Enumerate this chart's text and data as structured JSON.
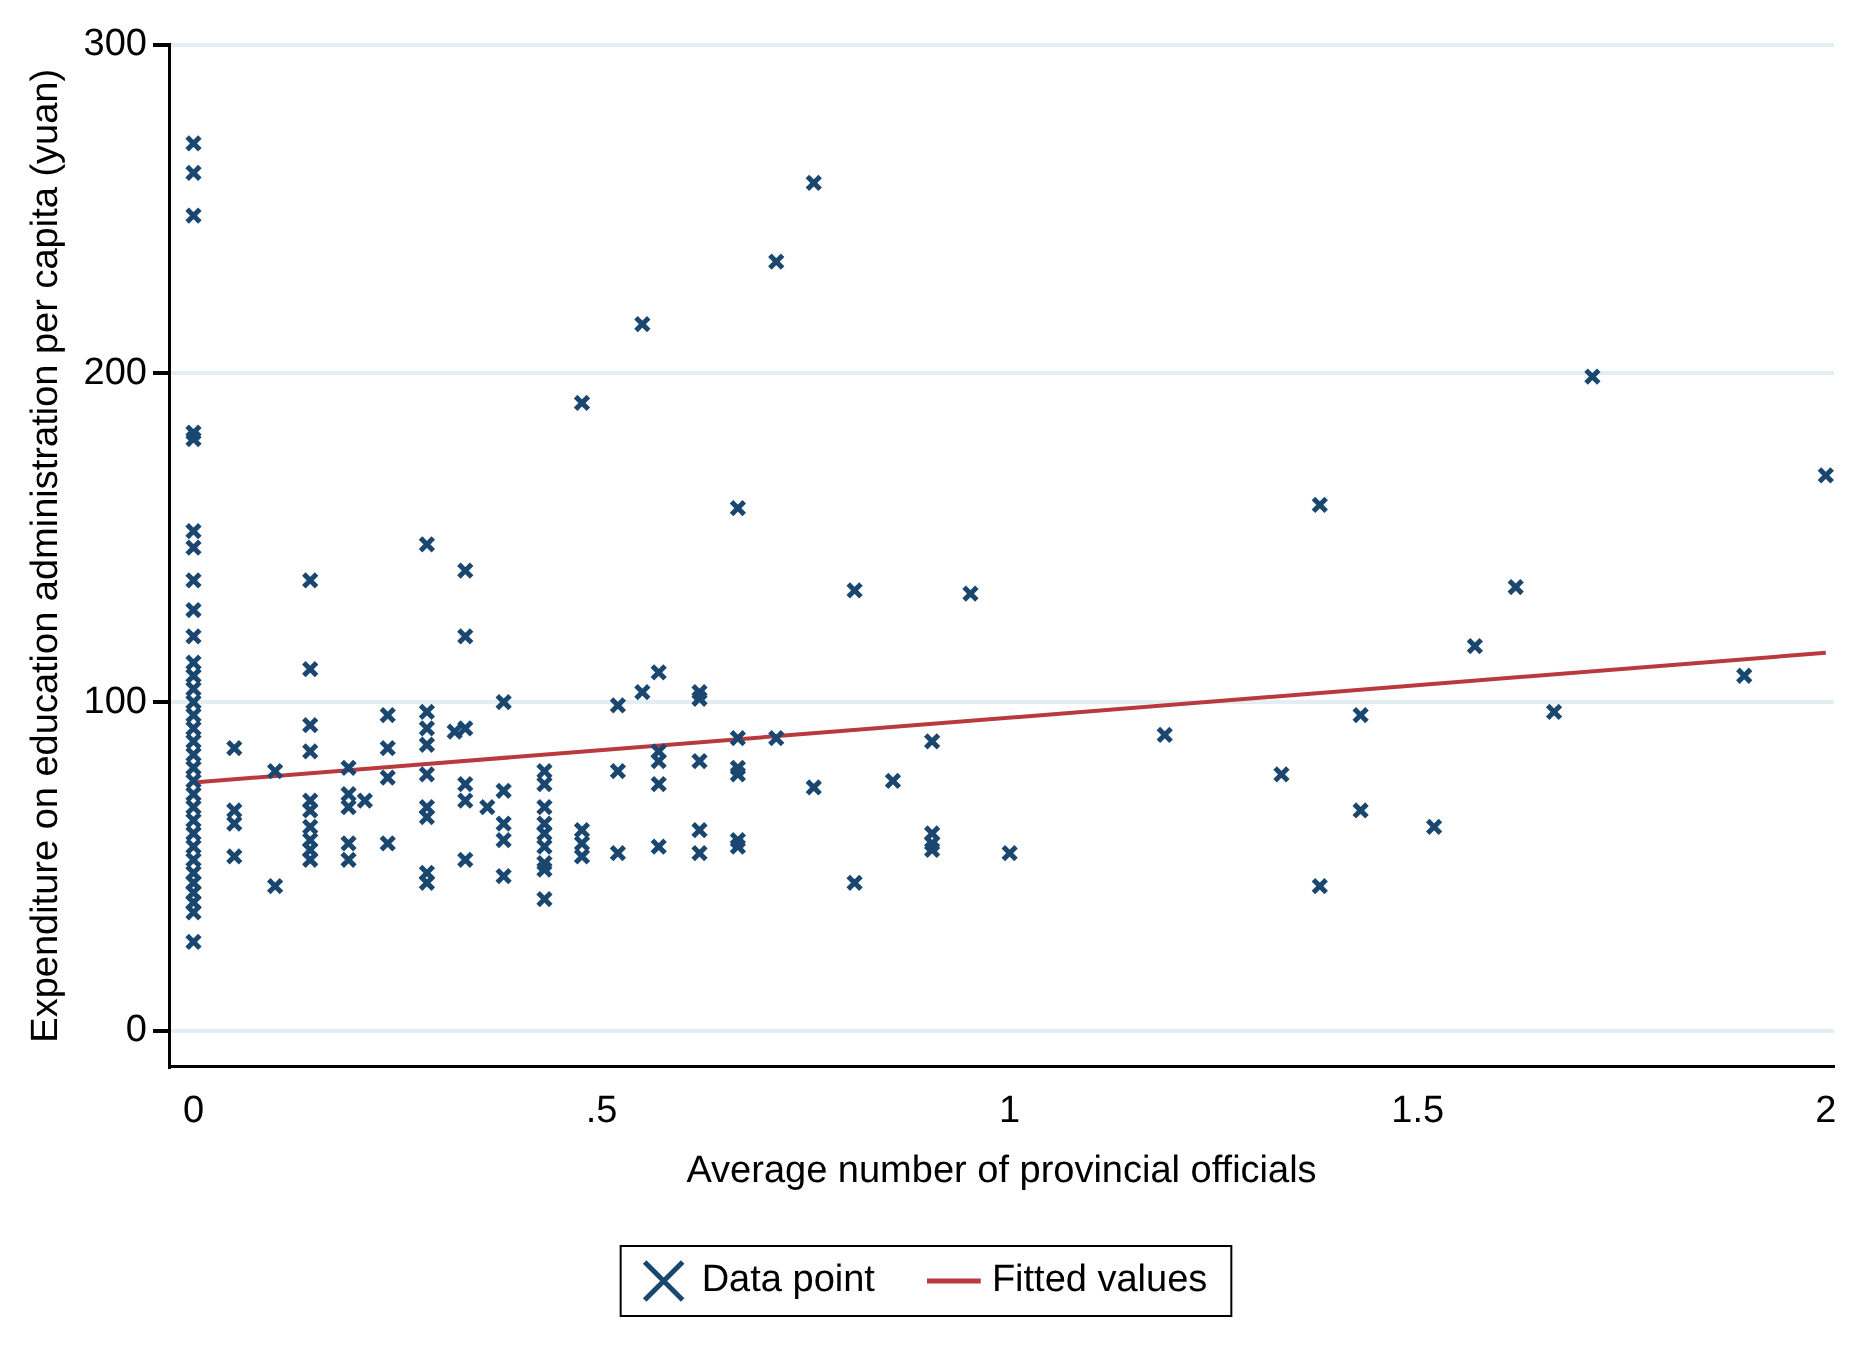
{
  "chart_data": {
    "type": "scatter",
    "xlabel": "Average number of provincial officials",
    "ylabel": "Expenditure on education administration per capita (yuan)",
    "xlim": [
      -0.03,
      2.01
    ],
    "ylim": [
      -11,
      300
    ],
    "xticks": [
      {
        "value": 0,
        "label": "0"
      },
      {
        "value": 0.5,
        "label": ".5"
      },
      {
        "value": 1,
        "label": "1"
      },
      {
        "value": 1.5,
        "label": "1.5"
      },
      {
        "value": 2,
        "label": "2"
      }
    ],
    "yticks": [
      0,
      100,
      200,
      300
    ],
    "grid": "y",
    "legend": "bottom",
    "series": [
      {
        "name": "Data point",
        "type": "scatter",
        "marker": "cross",
        "color": "#1a476f",
        "x": [
          0,
          0,
          0,
          0,
          0,
          0,
          0,
          0,
          0,
          0,
          0,
          0,
          0,
          0,
          0,
          0,
          0,
          0,
          0,
          0,
          0,
          0,
          0,
          0,
          0,
          0,
          0,
          0,
          0,
          0,
          0,
          0,
          0.05,
          0.05,
          0.05,
          0.05,
          0.1,
          0.1,
          0.143,
          0.143,
          0.143,
          0.143,
          0.143,
          0.143,
          0.143,
          0.143,
          0.143,
          0.143,
          0.19,
          0.19,
          0.19,
          0.19,
          0.19,
          0.21,
          0.238,
          0.238,
          0.238,
          0.238,
          0.286,
          0.286,
          0.286,
          0.286,
          0.286,
          0.286,
          0.286,
          0.286,
          0.286,
          0.32,
          0.333,
          0.333,
          0.333,
          0.333,
          0.333,
          0.333,
          0.36,
          0.38,
          0.38,
          0.38,
          0.38,
          0.38,
          0.43,
          0.43,
          0.43,
          0.43,
          0.43,
          0.43,
          0.43,
          0.43,
          0.43,
          0.476,
          0.476,
          0.476,
          0.476,
          0.52,
          0.52,
          0.52,
          0.55,
          0.55,
          0.57,
          0.57,
          0.57,
          0.57,
          0.57,
          0.62,
          0.62,
          0.62,
          0.62,
          0.62,
          0.667,
          0.667,
          0.667,
          0.667,
          0.667,
          0.667,
          0.714,
          0.714,
          0.76,
          0.76,
          0.81,
          0.81,
          0.857,
          0.905,
          0.905,
          0.905,
          0.905,
          0.952,
          1.0,
          1.19,
          1.333,
          1.38,
          1.38,
          1.43,
          1.43,
          1.52,
          1.57,
          1.62,
          1.667,
          1.714,
          1.9,
          2.0
        ],
        "values": [
          270,
          261,
          248,
          182,
          180,
          152,
          147,
          137,
          128,
          120,
          112,
          108,
          104,
          100,
          96,
          92,
          88,
          84,
          80,
          76,
          72,
          68,
          64,
          60,
          56,
          52,
          48,
          45,
          42,
          39,
          36,
          27,
          86,
          67,
          63,
          53,
          79,
          44,
          137,
          110,
          93,
          85,
          70,
          67,
          62,
          58,
          55,
          52,
          80,
          72,
          68,
          57,
          52,
          70,
          96,
          86,
          77,
          57,
          148,
          97,
          92,
          87,
          78,
          68,
          65,
          48,
          45,
          91,
          140,
          120,
          92,
          75,
          70,
          52,
          68,
          100,
          73,
          63,
          58,
          47,
          79,
          75,
          68,
          63,
          60,
          56,
          51,
          49,
          40,
          191,
          61,
          57,
          53,
          99,
          79,
          54,
          215,
          103,
          109,
          85,
          82,
          75,
          56,
          103,
          101,
          82,
          61,
          54,
          159,
          89,
          80,
          78,
          58,
          56,
          234,
          89,
          258,
          74,
          134,
          45,
          76,
          88,
          60,
          57,
          55,
          133,
          54,
          90,
          78,
          160,
          44,
          96,
          67,
          62,
          117,
          135,
          97,
          199,
          108,
          169
        ]
      },
      {
        "name": "Fitted values",
        "type": "line",
        "marker": "none",
        "line_style": "solid",
        "color": "#b83a3f",
        "x": [
          0,
          2
        ],
        "values": [
          75.5,
          115
        ]
      }
    ]
  }
}
